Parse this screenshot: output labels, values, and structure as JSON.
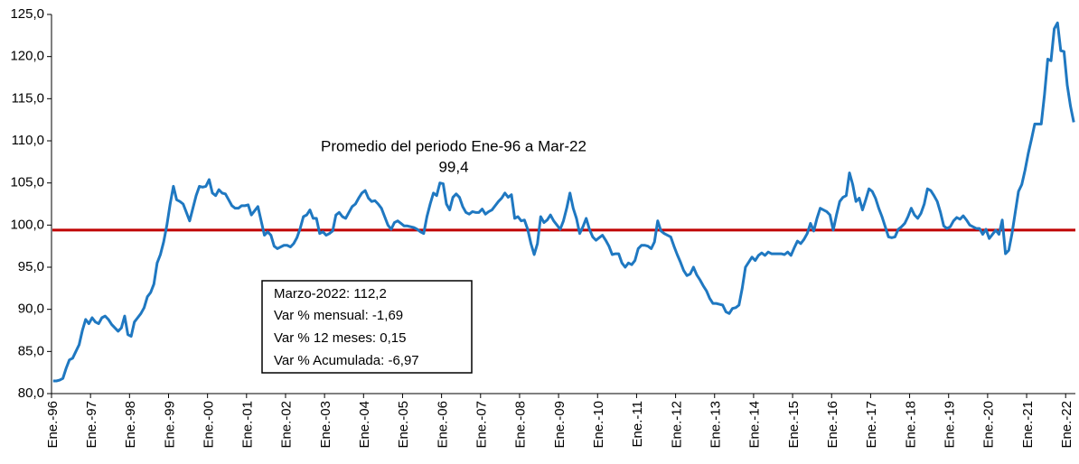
{
  "chart_data": {
    "type": "line",
    "categories": [
      "Ene.-96",
      null,
      null,
      null,
      null,
      null,
      null,
      null,
      null,
      null,
      null,
      null,
      "Ene.-97",
      null,
      null,
      null,
      null,
      null,
      null,
      null,
      null,
      null,
      null,
      null,
      "Ene.-98",
      null,
      null,
      null,
      null,
      null,
      null,
      null,
      null,
      null,
      null,
      null,
      "Ene.-99",
      null,
      null,
      null,
      null,
      null,
      null,
      null,
      null,
      null,
      null,
      null,
      "Ene.-00",
      null,
      null,
      null,
      null,
      null,
      null,
      null,
      null,
      null,
      null,
      null,
      "Ene.-01",
      null,
      null,
      null,
      null,
      null,
      null,
      null,
      null,
      null,
      null,
      null,
      "Ene.-02",
      null,
      null,
      null,
      null,
      null,
      null,
      null,
      null,
      null,
      null,
      null,
      "Ene.-03",
      null,
      null,
      null,
      null,
      null,
      null,
      null,
      null,
      null,
      null,
      null,
      "Ene.-04",
      null,
      null,
      null,
      null,
      null,
      null,
      null,
      null,
      null,
      null,
      null,
      "Ene.-05",
      null,
      null,
      null,
      null,
      null,
      null,
      null,
      null,
      null,
      null,
      null,
      "Ene.-06",
      null,
      null,
      null,
      null,
      null,
      null,
      null,
      null,
      null,
      null,
      null,
      "Ene.-07",
      null,
      null,
      null,
      null,
      null,
      null,
      null,
      null,
      null,
      null,
      null,
      "Ene.-08",
      null,
      null,
      null,
      null,
      null,
      null,
      null,
      null,
      null,
      null,
      null,
      "Ene.-09",
      null,
      null,
      null,
      null,
      null,
      null,
      null,
      null,
      null,
      null,
      null,
      "Ene.-10",
      null,
      null,
      null,
      null,
      null,
      null,
      null,
      null,
      null,
      null,
      null,
      "Ene.-11",
      null,
      null,
      null,
      null,
      null,
      null,
      null,
      null,
      null,
      null,
      null,
      "Ene.-12",
      null,
      null,
      null,
      null,
      null,
      null,
      null,
      null,
      null,
      null,
      null,
      "Ene.-13",
      null,
      null,
      null,
      null,
      null,
      null,
      null,
      null,
      null,
      null,
      null,
      "Ene.-14",
      null,
      null,
      null,
      null,
      null,
      null,
      null,
      null,
      null,
      null,
      null,
      "Ene.-15",
      null,
      null,
      null,
      null,
      null,
      null,
      null,
      null,
      null,
      null,
      null,
      "Ene.-16",
      null,
      null,
      null,
      null,
      null,
      null,
      null,
      null,
      null,
      null,
      null,
      "Ene.-17",
      null,
      null,
      null,
      null,
      null,
      null,
      null,
      null,
      null,
      null,
      null,
      "Ene.-18",
      null,
      null,
      null,
      null,
      null,
      null,
      null,
      null,
      null,
      null,
      null,
      "Ene.-19",
      null,
      null,
      null,
      null,
      null,
      null,
      null,
      null,
      null,
      null,
      null,
      "Ene.-20",
      null,
      null,
      null,
      null,
      null,
      null,
      null,
      null,
      null,
      null,
      null,
      "Ene.-21",
      null,
      null,
      null,
      null,
      null,
      null,
      null,
      null,
      null,
      null,
      null,
      "Ene.-22",
      null,
      null
    ],
    "series": [
      {
        "color": "#1f78c1",
        "values": [
          81.5,
          81.5,
          81.6,
          81.8,
          83,
          84,
          84.2,
          85,
          85.8,
          87.5,
          88.8,
          88.3,
          89,
          88.5,
          88.3,
          89,
          89.2,
          88.8,
          88.2,
          87.8,
          87.4,
          87.8,
          89.2,
          87,
          86.8,
          88.5,
          89,
          89.5,
          90.2,
          91.5,
          92,
          93,
          95.5,
          96.5,
          98,
          100,
          102.5,
          104.6,
          103,
          102.8,
          102.5,
          101.5,
          100.5,
          102,
          103.5,
          104.6,
          104.5,
          104.6,
          105.4,
          103.8,
          103.5,
          104.2,
          103.8,
          103.7,
          103,
          102.3,
          102,
          102,
          102.3,
          102.3,
          102.4,
          101.2,
          101.7,
          102.2,
          100.5,
          98.8,
          99.2,
          98.8,
          97.5,
          97.2,
          97.4,
          97.6,
          97.6,
          97.4,
          97.8,
          98.5,
          99.6,
          101,
          101.2,
          101.8,
          100.8,
          100.8,
          99,
          99.2,
          98.8,
          99,
          99.3,
          101.2,
          101.5,
          101,
          100.8,
          101.5,
          102.2,
          102.5,
          103.2,
          103.8,
          104.1,
          103.2,
          102.8,
          102.9,
          102.5,
          102,
          101,
          100,
          99.5,
          100.3,
          100.5,
          100.2,
          99.9,
          99.9,
          99.8,
          99.7,
          99.5,
          99.2,
          99,
          101,
          102.5,
          103.8,
          103.5,
          105,
          104.9,
          102.5,
          101.8,
          103.3,
          103.7,
          103.3,
          102.2,
          101.5,
          101.3,
          101.6,
          101.5,
          101.5,
          101.9,
          101.3,
          101.6,
          101.8,
          102.3,
          102.8,
          103.2,
          103.8,
          103.3,
          103.6,
          100.8,
          101,
          100.5,
          100.6,
          99.5,
          97.8,
          96.5,
          97.8,
          101,
          100.3,
          100.6,
          101.2,
          100.5,
          100,
          99.5,
          100.5,
          102,
          103.8,
          102,
          100.8,
          99,
          99.8,
          100.8,
          99.5,
          98.6,
          98.2,
          98.5,
          98.8,
          98.2,
          97.5,
          96.5,
          96.6,
          96.6,
          95.5,
          95,
          95.5,
          95.3,
          95.8,
          97.2,
          97.6,
          97.6,
          97.5,
          97.2,
          98,
          100.5,
          99.3,
          99,
          98.8,
          98.6,
          97.5,
          96.5,
          95.6,
          94.6,
          94,
          94.2,
          95,
          94.1,
          93.5,
          92.8,
          92.2,
          91.3,
          90.7,
          90.7,
          90.6,
          90.5,
          89.7,
          89.5,
          90.1,
          90.2,
          90.5,
          92.5,
          95,
          95.6,
          96.2,
          95.8,
          96.4,
          96.7,
          96.4,
          96.8,
          96.6,
          96.6,
          96.6,
          96.6,
          96.5,
          96.8,
          96.4,
          97.3,
          98.1,
          97.8,
          98.3,
          99,
          100.2,
          99.3,
          100.8,
          102,
          101.8,
          101.6,
          101.2,
          99.4,
          101.2,
          102.8,
          103.3,
          103.5,
          106.2,
          104.8,
          102.8,
          103.2,
          101.8,
          103,
          104.3,
          104,
          103.2,
          102,
          101,
          99.8,
          98.6,
          98.5,
          98.6,
          99.5,
          99.8,
          100.2,
          101,
          102,
          101.2,
          100.8,
          101.4,
          102.5,
          104.3,
          104.1,
          103.5,
          102.8,
          101.5,
          99.9,
          99.6,
          99.8,
          100.5,
          100.9,
          100.7,
          101.1,
          100.6,
          100,
          99.8,
          99.6,
          99.6,
          98.9,
          99.5,
          98.4,
          98.9,
          99.4,
          98.9,
          100.6,
          96.6,
          97,
          99,
          101.5,
          104,
          104.8,
          106.5,
          108.5,
          110.2,
          112,
          112,
          112,
          115.5,
          119.7,
          119.5,
          123.3,
          124,
          120.7,
          120.6,
          116.6,
          114.1,
          112.2
        ]
      }
    ],
    "average": {
      "value": 99.4,
      "label": "99,4",
      "color": "#c00000",
      "title": "Promedio del periodo Ene-96 a Mar-22"
    },
    "info_box": [
      "Marzo-2022: 112,2",
      "Var % mensual: -1,69",
      "Var % 12 meses: 0,15",
      "Var % Acumulada: -6,97"
    ],
    "ylim": [
      80,
      125
    ],
    "yticks": [
      {
        "value": 80,
        "label": "80,0"
      },
      {
        "value": 85,
        "label": "85,0"
      },
      {
        "value": 90,
        "label": "90,0"
      },
      {
        "value": 95,
        "label": "95,0"
      },
      {
        "value": 100,
        "label": "100,0"
      },
      {
        "value": 105,
        "label": "105,0"
      },
      {
        "value": 110,
        "label": "110,0"
      },
      {
        "value": 115,
        "label": "115,0"
      },
      {
        "value": 120,
        "label": "120,0"
      },
      {
        "value": 125,
        "label": "125,0"
      }
    ]
  }
}
